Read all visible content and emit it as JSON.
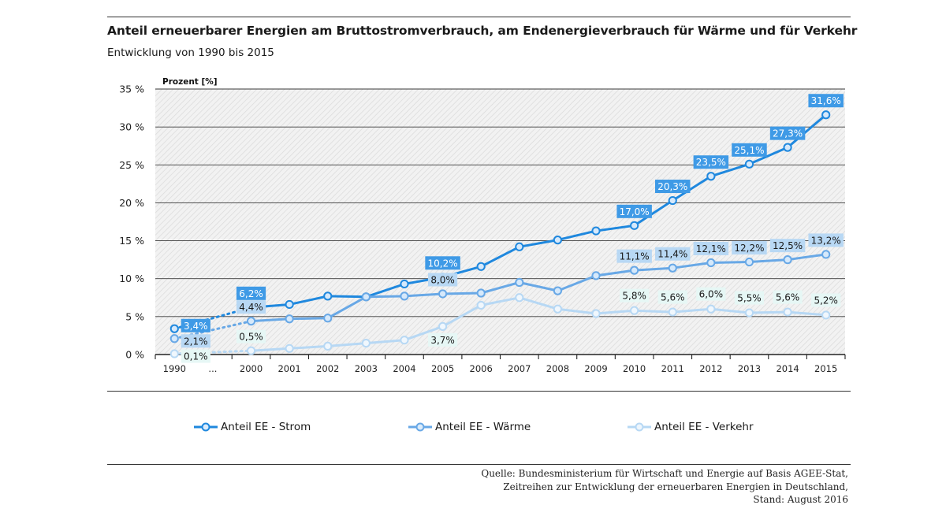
{
  "header": {
    "title": "Anteil erneuerbarer Energien am Bruttostromverbrauch, am Endenergieverbrauch für Wärme und für Verkehr",
    "subtitle": "Entwicklung von 1990 bis 2015"
  },
  "chart_data": {
    "type": "line",
    "ylabel": "Prozent [%]",
    "ylim": [
      0,
      35
    ],
    "y_ticks": [
      "0 %",
      "5 %",
      "10 %",
      "15 %",
      "20 %",
      "25 %",
      "30 %",
      "35 %"
    ],
    "categories": [
      "1990",
      "...",
      "2000",
      "2001",
      "2002",
      "2003",
      "2004",
      "2005",
      "2006",
      "2007",
      "2008",
      "2009",
      "2010",
      "2011",
      "2012",
      "2013",
      "2014",
      "2015"
    ],
    "grid": true,
    "legend_position": "bottom",
    "series": [
      {
        "name": "Anteil EE - Strom",
        "color": "#1f88de",
        "values": [
          3.4,
          null,
          6.2,
          6.6,
          7.7,
          7.6,
          9.3,
          10.2,
          11.6,
          14.2,
          15.1,
          16.3,
          17.0,
          20.3,
          23.5,
          25.1,
          27.3,
          31.6
        ],
        "labels": [
          {
            "index": 0,
            "text": "3,4%"
          },
          {
            "index": 2,
            "text": "6,2%"
          },
          {
            "index": 7,
            "text": "10,2%"
          },
          {
            "index": 12,
            "text": "17,0%"
          },
          {
            "index": 13,
            "text": "20,3%"
          },
          {
            "index": 14,
            "text": "23,5%"
          },
          {
            "index": 15,
            "text": "25,1%"
          },
          {
            "index": 16,
            "text": "27,3%"
          },
          {
            "index": 17,
            "text": "31,6%"
          }
        ]
      },
      {
        "name": "Anteil EE - Wärme",
        "color": "#68a8e6",
        "values": [
          2.1,
          null,
          4.4,
          4.7,
          4.8,
          7.6,
          7.7,
          8.0,
          8.1,
          9.5,
          8.4,
          10.4,
          11.1,
          11.4,
          12.1,
          12.2,
          12.5,
          13.2
        ],
        "labels": [
          {
            "index": 0,
            "text": "2,1%"
          },
          {
            "index": 2,
            "text": "4,4%"
          },
          {
            "index": 7,
            "text": "8,0%"
          },
          {
            "index": 12,
            "text": "11,1%"
          },
          {
            "index": 13,
            "text": "11,4%"
          },
          {
            "index": 14,
            "text": "12,1%"
          },
          {
            "index": 15,
            "text": "12,2%"
          },
          {
            "index": 16,
            "text": "12,5%"
          },
          {
            "index": 17,
            "text": "13,2%"
          }
        ]
      },
      {
        "name": "Anteil EE - Verkehr",
        "color": "#b7d8f4",
        "values": [
          0.1,
          null,
          0.5,
          0.8,
          1.1,
          1.5,
          1.9,
          3.7,
          6.5,
          7.5,
          6.0,
          5.4,
          5.8,
          5.6,
          6.0,
          5.5,
          5.6,
          5.2
        ],
        "labels": [
          {
            "index": 0,
            "text": "0,1%"
          },
          {
            "index": 2,
            "text": "0,5%"
          },
          {
            "index": 7,
            "text": "3,7%"
          },
          {
            "index": 12,
            "text": "5,8%"
          },
          {
            "index": 13,
            "text": "5,6%"
          },
          {
            "index": 14,
            "text": "6,0%"
          },
          {
            "index": 15,
            "text": "5,5%"
          },
          {
            "index": 16,
            "text": "5,6%"
          },
          {
            "index": 17,
            "text": "5,2%"
          }
        ]
      }
    ]
  },
  "legend": {
    "items": [
      {
        "label": "Anteil EE - Strom",
        "color": "#1f88de"
      },
      {
        "label": "Anteil EE - Wärme",
        "color": "#68a8e6"
      },
      {
        "label": "Anteil EE - Verkehr",
        "color": "#b7d8f4"
      }
    ]
  },
  "source": {
    "lines": [
      "Quelle: Bundesministerium für Wirtschaft und Energie auf Basis AGEE-Stat,",
      "Zeitreihen zur Entwicklung der erneuerbaren Energien in Deutschland,",
      "Stand: August 2016"
    ]
  }
}
